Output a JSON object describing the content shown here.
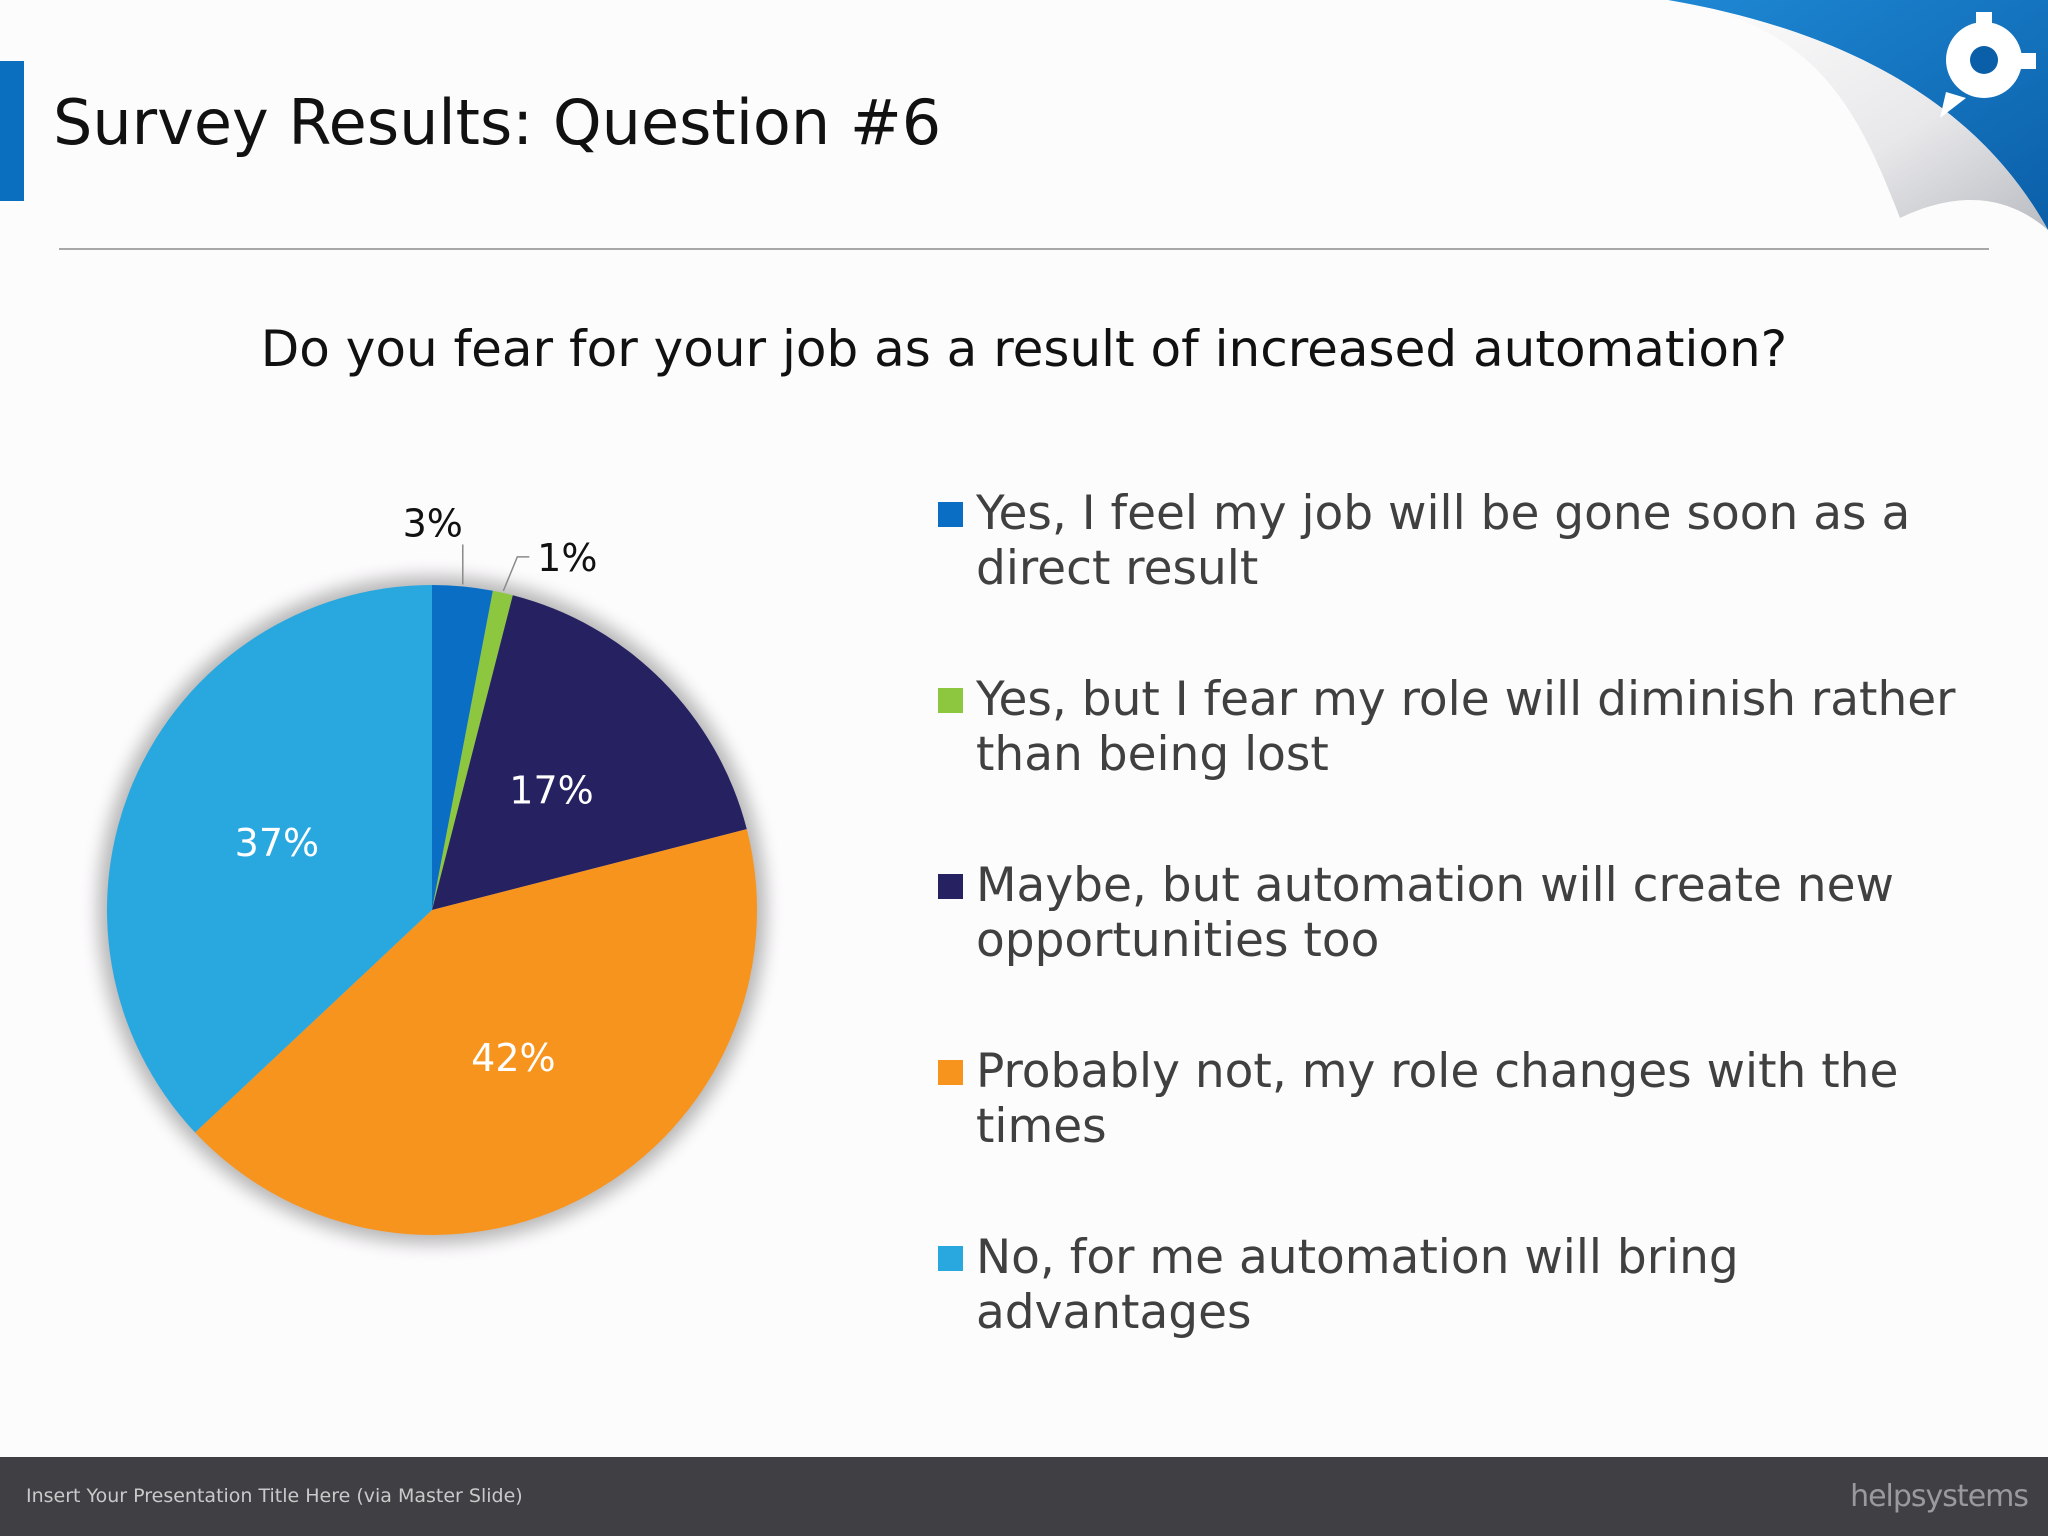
{
  "slide": {
    "title": "Survey Results: Question #6",
    "footer_text": "Insert Your Presentation Title Here (via Master Slide)",
    "logo_text": "helpsystems"
  },
  "chart_data": {
    "type": "pie",
    "title": "Do you fear for your job as a result of increased automation?",
    "legend_position": "right",
    "slices": [
      {
        "label": "Yes, I feel my job will be gone soon as a direct result",
        "value": 3,
        "display": "3%",
        "color": "#0a6fc4"
      },
      {
        "label": "Yes, but I fear my role will diminish rather than being lost",
        "value": 1,
        "display": "1%",
        "color": "#8dc63f"
      },
      {
        "label": "Maybe, but automation will create new opportunities too",
        "value": 17,
        "display": "17%",
        "color": "#262262"
      },
      {
        "label": "Probably not, my role changes with the times",
        "value": 42,
        "display": "42%",
        "color": "#f7941e"
      },
      {
        "label": "No, for me automation will bring advantages",
        "value": 37,
        "display": "37%",
        "color": "#29a8e0"
      }
    ]
  }
}
